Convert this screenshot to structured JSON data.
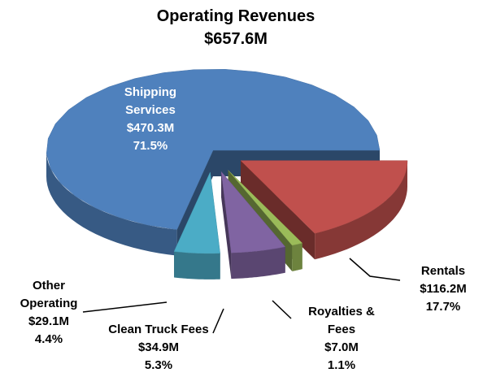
{
  "chart_data": {
    "type": "pie",
    "title": "Operating Revenues",
    "subtitle": "$657.6M",
    "categories": [
      "Rentals",
      "Royalties & Fees",
      "Clean Truck Fees",
      "Other Operating",
      "Shipping Services"
    ],
    "values": [
      116.2,
      7.0,
      34.9,
      29.1,
      470.3
    ],
    "value_labels": [
      "$116.2M",
      "$7.0M",
      "$34.9M",
      "$29.1M",
      "$470.3M"
    ],
    "percents": [
      17.7,
      1.1,
      5.3,
      4.4,
      71.5
    ],
    "percent_labels": [
      "17.7%",
      "1.1%",
      "5.3%",
      "4.4%",
      "71.5%"
    ],
    "colors": [
      "#c0504d",
      "#9bbb59",
      "#8064a2",
      "#4bacc6",
      "#4f81bd"
    ]
  }
}
